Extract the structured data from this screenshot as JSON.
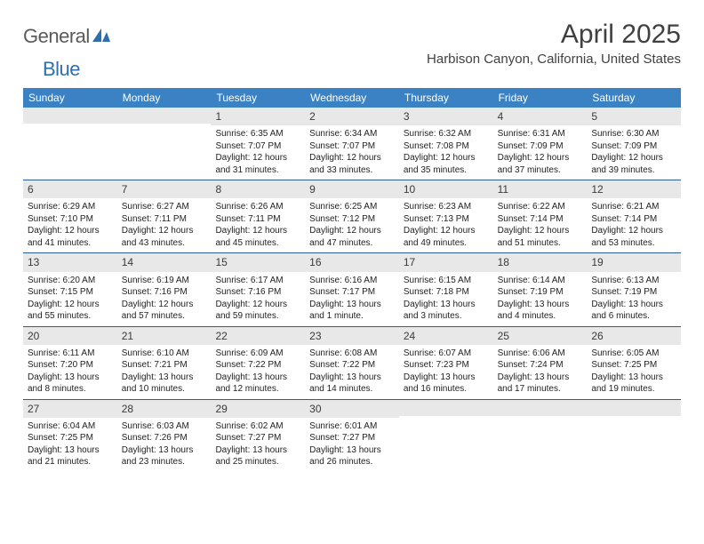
{
  "branding": {
    "logo_word1": "General",
    "logo_word2": "Blue",
    "logo_word1_color": "#5a5a5a",
    "logo_word2_color": "#2f6fae",
    "logo_icon_color": "#2f6fae"
  },
  "header": {
    "month_title": "April 2025",
    "location": "Harbison Canyon, California, United States"
  },
  "colors": {
    "header_bar": "#3a82c4",
    "header_text": "#ffffff",
    "daynum_bg": "#e8e8e8",
    "week_divider": "#2b5f8f",
    "body_text": "#222222",
    "page_bg": "#ffffff"
  },
  "day_labels": [
    "Sunday",
    "Monday",
    "Tuesday",
    "Wednesday",
    "Thursday",
    "Friday",
    "Saturday"
  ],
  "calendar": {
    "leading_blanks": 2,
    "days": [
      {
        "n": 1,
        "sunrise": "6:35 AM",
        "sunset": "7:07 PM",
        "daylight": "12 hours and 31 minutes."
      },
      {
        "n": 2,
        "sunrise": "6:34 AM",
        "sunset": "7:07 PM",
        "daylight": "12 hours and 33 minutes."
      },
      {
        "n": 3,
        "sunrise": "6:32 AM",
        "sunset": "7:08 PM",
        "daylight": "12 hours and 35 minutes."
      },
      {
        "n": 4,
        "sunrise": "6:31 AM",
        "sunset": "7:09 PM",
        "daylight": "12 hours and 37 minutes."
      },
      {
        "n": 5,
        "sunrise": "6:30 AM",
        "sunset": "7:09 PM",
        "daylight": "12 hours and 39 minutes."
      },
      {
        "n": 6,
        "sunrise": "6:29 AM",
        "sunset": "7:10 PM",
        "daylight": "12 hours and 41 minutes."
      },
      {
        "n": 7,
        "sunrise": "6:27 AM",
        "sunset": "7:11 PM",
        "daylight": "12 hours and 43 minutes."
      },
      {
        "n": 8,
        "sunrise": "6:26 AM",
        "sunset": "7:11 PM",
        "daylight": "12 hours and 45 minutes."
      },
      {
        "n": 9,
        "sunrise": "6:25 AM",
        "sunset": "7:12 PM",
        "daylight": "12 hours and 47 minutes."
      },
      {
        "n": 10,
        "sunrise": "6:23 AM",
        "sunset": "7:13 PM",
        "daylight": "12 hours and 49 minutes."
      },
      {
        "n": 11,
        "sunrise": "6:22 AM",
        "sunset": "7:14 PM",
        "daylight": "12 hours and 51 minutes."
      },
      {
        "n": 12,
        "sunrise": "6:21 AM",
        "sunset": "7:14 PM",
        "daylight": "12 hours and 53 minutes."
      },
      {
        "n": 13,
        "sunrise": "6:20 AM",
        "sunset": "7:15 PM",
        "daylight": "12 hours and 55 minutes."
      },
      {
        "n": 14,
        "sunrise": "6:19 AM",
        "sunset": "7:16 PM",
        "daylight": "12 hours and 57 minutes."
      },
      {
        "n": 15,
        "sunrise": "6:17 AM",
        "sunset": "7:16 PM",
        "daylight": "12 hours and 59 minutes."
      },
      {
        "n": 16,
        "sunrise": "6:16 AM",
        "sunset": "7:17 PM",
        "daylight": "13 hours and 1 minute."
      },
      {
        "n": 17,
        "sunrise": "6:15 AM",
        "sunset": "7:18 PM",
        "daylight": "13 hours and 3 minutes."
      },
      {
        "n": 18,
        "sunrise": "6:14 AM",
        "sunset": "7:19 PM",
        "daylight": "13 hours and 4 minutes."
      },
      {
        "n": 19,
        "sunrise": "6:13 AM",
        "sunset": "7:19 PM",
        "daylight": "13 hours and 6 minutes."
      },
      {
        "n": 20,
        "sunrise": "6:11 AM",
        "sunset": "7:20 PM",
        "daylight": "13 hours and 8 minutes."
      },
      {
        "n": 21,
        "sunrise": "6:10 AM",
        "sunset": "7:21 PM",
        "daylight": "13 hours and 10 minutes."
      },
      {
        "n": 22,
        "sunrise": "6:09 AM",
        "sunset": "7:22 PM",
        "daylight": "13 hours and 12 minutes."
      },
      {
        "n": 23,
        "sunrise": "6:08 AM",
        "sunset": "7:22 PM",
        "daylight": "13 hours and 14 minutes."
      },
      {
        "n": 24,
        "sunrise": "6:07 AM",
        "sunset": "7:23 PM",
        "daylight": "13 hours and 16 minutes."
      },
      {
        "n": 25,
        "sunrise": "6:06 AM",
        "sunset": "7:24 PM",
        "daylight": "13 hours and 17 minutes."
      },
      {
        "n": 26,
        "sunrise": "6:05 AM",
        "sunset": "7:25 PM",
        "daylight": "13 hours and 19 minutes."
      },
      {
        "n": 27,
        "sunrise": "6:04 AM",
        "sunset": "7:25 PM",
        "daylight": "13 hours and 21 minutes."
      },
      {
        "n": 28,
        "sunrise": "6:03 AM",
        "sunset": "7:26 PM",
        "daylight": "13 hours and 23 minutes."
      },
      {
        "n": 29,
        "sunrise": "6:02 AM",
        "sunset": "7:27 PM",
        "daylight": "13 hours and 25 minutes."
      },
      {
        "n": 30,
        "sunrise": "6:01 AM",
        "sunset": "7:27 PM",
        "daylight": "13 hours and 26 minutes."
      }
    ]
  },
  "labels": {
    "sunrise": "Sunrise:",
    "sunset": "Sunset:",
    "daylight": "Daylight:"
  }
}
